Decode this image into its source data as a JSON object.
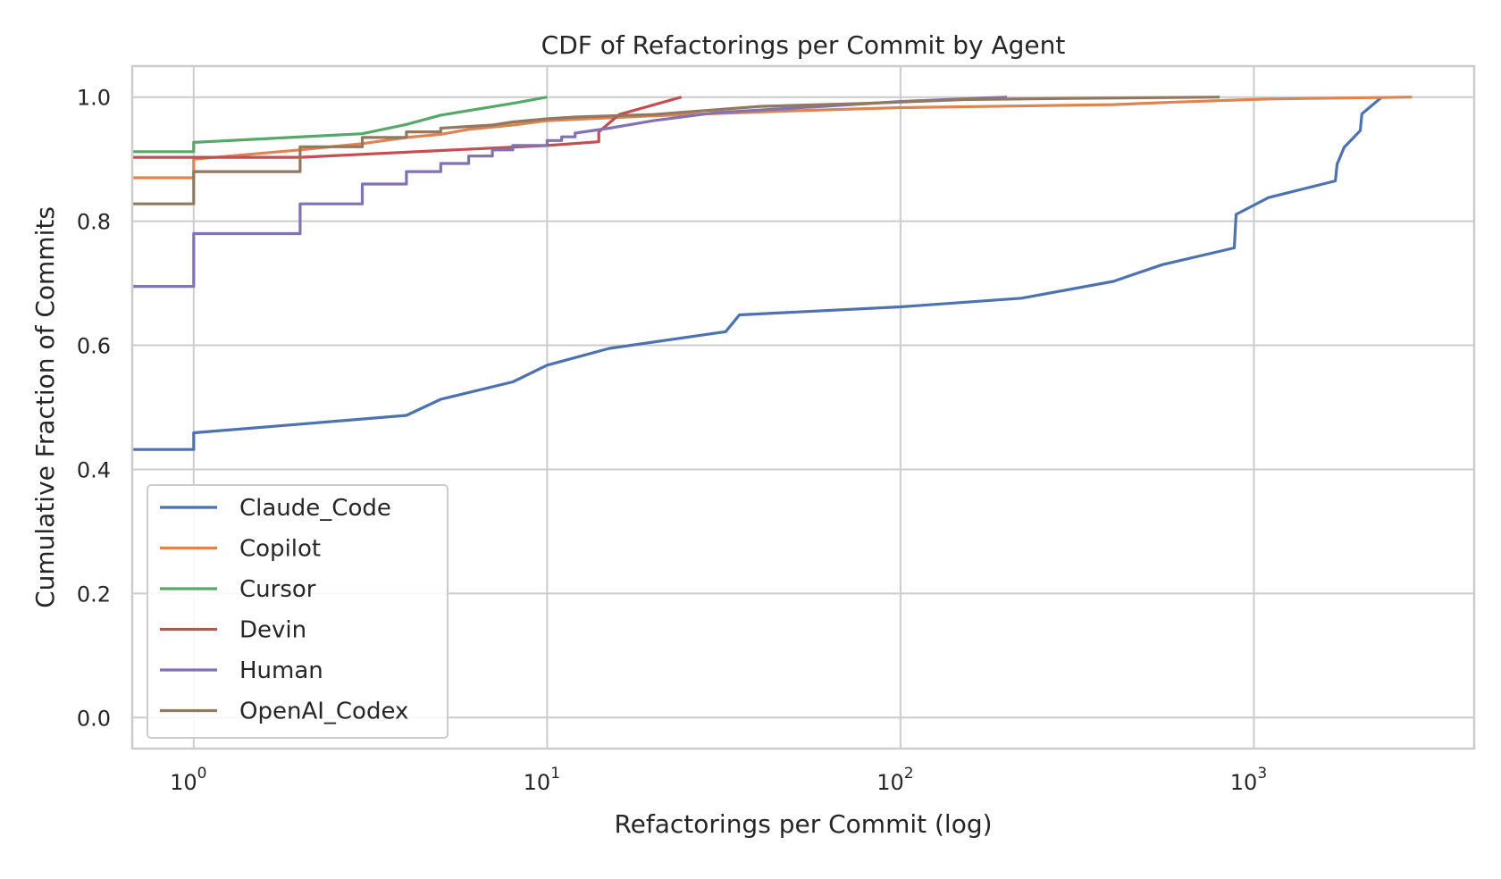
{
  "chart_data": {
    "type": "line",
    "title": "CDF of Refactorings per Commit by Agent",
    "xlabel": "Refactorings per Commit (log)",
    "ylabel": "Cumulative Fraction of Commits",
    "xscale": "log",
    "xlim": [
      0.67,
      4200
    ],
    "ylim": [
      -0.05,
      1.05
    ],
    "x_ticks": [
      {
        "base": "10",
        "exp": "0",
        "value": 1
      },
      {
        "base": "10",
        "exp": "1",
        "value": 10
      },
      {
        "base": "10",
        "exp": "2",
        "value": 100
      },
      {
        "base": "10",
        "exp": "3",
        "value": 1000
      }
    ],
    "y_ticks": [
      {
        "label": "0.0",
        "value": 0.0
      },
      {
        "label": "0.2",
        "value": 0.2
      },
      {
        "label": "0.4",
        "value": 0.4
      },
      {
        "label": "0.6",
        "value": 0.6
      },
      {
        "label": "0.8",
        "value": 0.8
      },
      {
        "label": "1.0",
        "value": 1.0
      }
    ],
    "grid": true,
    "legend_position": "lower-left",
    "series": [
      {
        "name": "Claude_Code",
        "color": "#4c72b0",
        "points": [
          [
            0.67,
            0.432
          ],
          [
            1,
            0.432
          ],
          [
            1,
            0.459
          ],
          [
            2,
            0.473
          ],
          [
            4,
            0.487
          ],
          [
            5,
            0.513
          ],
          [
            8,
            0.541
          ],
          [
            10,
            0.568
          ],
          [
            15,
            0.595
          ],
          [
            32,
            0.622
          ],
          [
            35,
            0.649
          ],
          [
            100,
            0.662
          ],
          [
            220,
            0.676
          ],
          [
            400,
            0.703
          ],
          [
            550,
            0.73
          ],
          [
            880,
            0.757
          ],
          [
            890,
            0.811
          ],
          [
            1100,
            0.838
          ],
          [
            1700,
            0.865
          ],
          [
            1720,
            0.892
          ],
          [
            1800,
            0.919
          ],
          [
            2000,
            0.946
          ],
          [
            2020,
            0.973
          ],
          [
            2300,
            1.0
          ]
        ]
      },
      {
        "name": "Copilot",
        "color": "#dd8452",
        "points": [
          [
            0.67,
            0.87
          ],
          [
            1,
            0.87
          ],
          [
            1,
            0.9
          ],
          [
            2,
            0.915
          ],
          [
            3,
            0.925
          ],
          [
            4,
            0.935
          ],
          [
            5,
            0.94
          ],
          [
            6,
            0.948
          ],
          [
            8,
            0.955
          ],
          [
            10,
            0.962
          ],
          [
            20,
            0.97
          ],
          [
            50,
            0.978
          ],
          [
            100,
            0.983
          ],
          [
            400,
            0.988
          ],
          [
            600,
            0.992
          ],
          [
            1100,
            0.997
          ],
          [
            2800,
            1.0
          ]
        ]
      },
      {
        "name": "Cursor",
        "color": "#55a868",
        "points": [
          [
            0.67,
            0.912
          ],
          [
            1,
            0.912
          ],
          [
            1,
            0.927
          ],
          [
            3,
            0.941
          ],
          [
            4,
            0.956
          ],
          [
            5,
            0.971
          ],
          [
            8,
            0.99
          ],
          [
            10,
            1.0
          ]
        ]
      },
      {
        "name": "Devin",
        "color": "#c44e52",
        "points": [
          [
            0.67,
            0.903
          ],
          [
            1,
            0.903
          ],
          [
            2,
            0.903
          ],
          [
            5,
            0.914
          ],
          [
            10,
            0.922
          ],
          [
            14,
            0.928
          ],
          [
            14,
            0.944
          ],
          [
            16,
            0.972
          ],
          [
            24,
            1.0
          ]
        ]
      },
      {
        "name": "Human",
        "color": "#8172b3",
        "points": [
          [
            0.67,
            0.695
          ],
          [
            1,
            0.695
          ],
          [
            1,
            0.78
          ],
          [
            2,
            0.78
          ],
          [
            2,
            0.828
          ],
          [
            3,
            0.828
          ],
          [
            3,
            0.86
          ],
          [
            4,
            0.86
          ],
          [
            4,
            0.88
          ],
          [
            5,
            0.88
          ],
          [
            5,
            0.893
          ],
          [
            6,
            0.893
          ],
          [
            6,
            0.905
          ],
          [
            7,
            0.905
          ],
          [
            7,
            0.915
          ],
          [
            8,
            0.915
          ],
          [
            8,
            0.922
          ],
          [
            10,
            0.922
          ],
          [
            10,
            0.93
          ],
          [
            11,
            0.93
          ],
          [
            11,
            0.936
          ],
          [
            12,
            0.936
          ],
          [
            12,
            0.942
          ],
          [
            15,
            0.95
          ],
          [
            20,
            0.962
          ],
          [
            30,
            0.975
          ],
          [
            60,
            0.985
          ],
          [
            100,
            0.993
          ],
          [
            200,
            1.0
          ]
        ]
      },
      {
        "name": "OpenAI_Codex",
        "color": "#937860",
        "points": [
          [
            0.67,
            0.828
          ],
          [
            1,
            0.828
          ],
          [
            1,
            0.88
          ],
          [
            2,
            0.88
          ],
          [
            2,
            0.92
          ],
          [
            3,
            0.92
          ],
          [
            3,
            0.935
          ],
          [
            4,
            0.935
          ],
          [
            4,
            0.944
          ],
          [
            5,
            0.944
          ],
          [
            5,
            0.95
          ],
          [
            7,
            0.955
          ],
          [
            8,
            0.96
          ],
          [
            10,
            0.965
          ],
          [
            12,
            0.968
          ],
          [
            20,
            0.972
          ],
          [
            40,
            0.985
          ],
          [
            80,
            0.99
          ],
          [
            150,
            0.996
          ],
          [
            300,
            0.998
          ],
          [
            800,
            1.0
          ]
        ]
      }
    ]
  }
}
